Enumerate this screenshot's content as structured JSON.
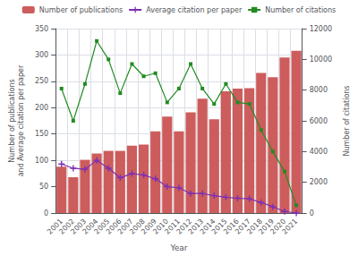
{
  "chart_data": {
    "type": "bar",
    "categories": [
      2001,
      2002,
      2003,
      2004,
      2005,
      2006,
      2007,
      2008,
      2009,
      2010,
      2011,
      2012,
      2013,
      2014,
      2015,
      2016,
      2017,
      2018,
      2019,
      2020,
      2021
    ],
    "xlabel": "Year",
    "ylabel": "Number of publications\nand Average citation per paper",
    "y2label": "Number of citations",
    "ylim": [
      0,
      350
    ],
    "yticks": [
      0,
      50,
      100,
      150,
      200,
      250,
      300,
      350
    ],
    "y2lim": [
      0,
      12000
    ],
    "y2ticks": [
      0,
      2000,
      4000,
      6000,
      8000,
      10000,
      12000
    ],
    "grid": true,
    "legend": "top",
    "series": [
      {
        "name": "Number of publications",
        "type": "bar",
        "color": "#cd5c5c",
        "values": [
          88,
          68,
          101,
          113,
          118,
          118,
          128,
          130,
          155,
          183,
          155,
          191,
          217,
          178,
          231,
          236,
          237,
          266,
          258,
          295,
          308
        ]
      },
      {
        "name": "Average citation per paper",
        "type": "line",
        "color": "#7b2fb5",
        "marker": "plus",
        "values": [
          93,
          85,
          83,
          100,
          85,
          67,
          75,
          72,
          65,
          50,
          48,
          37,
          37,
          33,
          30,
          28,
          27,
          20,
          12,
          3,
          0
        ]
      },
      {
        "name": "Number of citations",
        "type": "line",
        "color": "#228B22",
        "marker": "square",
        "axis": "y2",
        "values": [
          8100,
          6000,
          8400,
          11200,
          10000,
          7800,
          9700,
          8900,
          9100,
          7200,
          8100,
          9700,
          8100,
          7100,
          8400,
          7200,
          7100,
          5400,
          4000,
          2700,
          500
        ]
      }
    ]
  }
}
